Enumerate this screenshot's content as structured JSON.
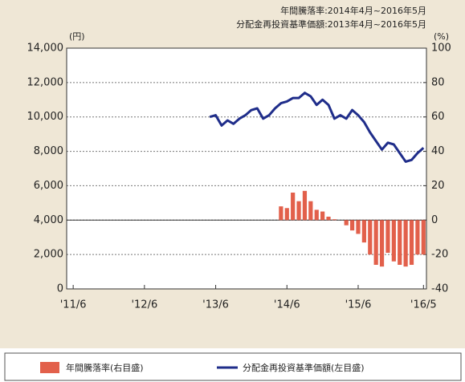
{
  "chart_data": {
    "type": "bar-line",
    "annotations": [
      "年間騰落率:2014年4月~2016年5月",
      "分配金再投資基準価額:2013年4月~2016年5月"
    ],
    "y_label": "(円)",
    "y2_label": "(%)",
    "xlim": [
      -1.1,
      59.5
    ],
    "xticks": [
      {
        "value": 0,
        "label": "'11/6"
      },
      {
        "value": 12,
        "label": "'12/6"
      },
      {
        "value": 24,
        "label": "'13/6"
      },
      {
        "value": 36,
        "label": "'14/6"
      },
      {
        "value": 48,
        "label": "'15/6"
      },
      {
        "value": 59,
        "label": "'16/5"
      }
    ],
    "ylim": [
      0,
      14000
    ],
    "yticks": [
      0,
      {
        "value": 2000,
        "label": "2,000"
      },
      {
        "value": 4000,
        "label": "4,000"
      },
      {
        "value": 6000,
        "label": "6,000"
      },
      {
        "value": 8000,
        "label": "8,000"
      },
      {
        "value": 10000,
        "label": "10,000"
      },
      {
        "value": 12000,
        "label": "12,000"
      },
      {
        "value": 14000,
        "label": "14,000"
      }
    ],
    "y2lim": [
      -40,
      100
    ],
    "y2ticks": [
      -40,
      -20,
      0,
      20,
      40,
      60,
      80,
      100
    ],
    "grid": true,
    "series": [
      {
        "name": "年間騰落率(右目盛)",
        "type": "bar",
        "axis": "y2",
        "color": "#e2604b",
        "x": [
          35,
          36,
          37,
          38,
          39,
          40,
          41,
          42,
          43,
          44,
          46,
          47,
          48,
          49,
          50,
          51,
          52,
          53,
          54,
          55,
          56,
          57,
          58,
          59
        ],
        "values": [
          8,
          7,
          16,
          11,
          17,
          11,
          6,
          5,
          2,
          0.5,
          -3,
          -6,
          -8,
          -13,
          -20,
          -26,
          -27,
          -19,
          -24,
          -26,
          -27,
          -26,
          -20,
          -20
        ]
      },
      {
        "name": "分配金再投資基準価額(左目盛)",
        "type": "line",
        "color": "#1f2d8a",
        "x": [
          23,
          24,
          25,
          26,
          27,
          28,
          29,
          30,
          31,
          32,
          33,
          34,
          35,
          36,
          37,
          38,
          39,
          40,
          41,
          42,
          43,
          44,
          45,
          46,
          47,
          48,
          49,
          50,
          51,
          52,
          53,
          54,
          55,
          56,
          57,
          58,
          59
        ],
        "values": [
          10000,
          10100,
          9500,
          9800,
          9600,
          9900,
          10100,
          10400,
          10500,
          9900,
          10100,
          10500,
          10800,
          10900,
          11100,
          11100,
          11400,
          11200,
          10700,
          11000,
          10700,
          9900,
          10100,
          9900,
          10400,
          10100,
          9700,
          9100,
          8600,
          8100,
          8500,
          8400,
          7900,
          7400,
          7500,
          7900,
          8200
        ]
      }
    ]
  }
}
